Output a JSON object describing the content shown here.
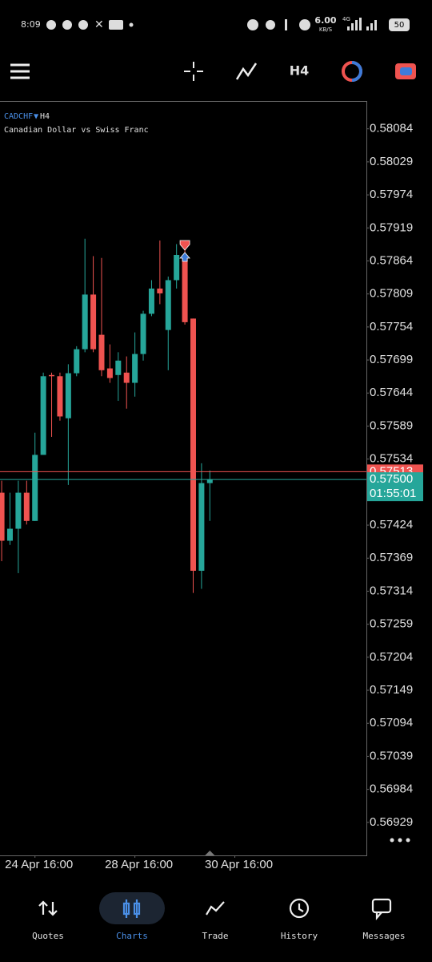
{
  "status_bar": {
    "time": "8:09",
    "speed": "6.00",
    "speed_unit": "KB/S",
    "network": "4G",
    "battery": "50"
  },
  "toolbar": {
    "timeframe": "H4"
  },
  "chart_data": {
    "type": "candlestick",
    "symbol": "CADCHF",
    "timeframe": "H4",
    "title": "Canadian Dollar vs Swiss Franc",
    "open": [
      0.57478,
      0.57398,
      0.57418,
      0.57478,
      0.57431,
      0.57541,
      0.57674,
      0.57672,
      0.57602,
      0.57677,
      0.57717,
      0.57808,
      0.57741,
      0.57685,
      0.57674,
      0.57678,
      0.57661,
      0.57709,
      0.57776,
      0.57818,
      0.57749,
      0.57832,
      0.57874,
      0.57768,
      0.57348,
      0.57494
    ],
    "high": [
      0.57498,
      0.57478,
      0.57498,
      0.57498,
      0.57578,
      0.57678,
      0.57678,
      0.57678,
      0.57692,
      0.57722,
      0.57901,
      0.57872,
      0.57869,
      0.57725,
      0.57712,
      0.57705,
      0.57745,
      0.57781,
      0.57832,
      0.57898,
      0.57838,
      0.57892,
      0.57898,
      0.57768,
      0.57527,
      0.57515
    ],
    "low": [
      0.57364,
      0.57391,
      0.57344,
      0.57425,
      0.57431,
      0.57545,
      0.57571,
      0.57598,
      0.57491,
      0.57672,
      0.57712,
      0.57712,
      0.57672,
      0.57661,
      0.57631,
      0.57618,
      0.57638,
      0.57698,
      0.57772,
      0.57792,
      0.57682,
      0.57818,
      0.57758,
      0.57311,
      0.57318,
      0.57431
    ],
    "close": [
      0.57398,
      0.57418,
      0.57478,
      0.57431,
      0.57541,
      0.57672,
      0.57672,
      0.57605,
      0.57677,
      0.57717,
      0.57808,
      0.57717,
      0.57682,
      0.57669,
      0.57698,
      0.57661,
      0.57709,
      0.57776,
      0.57818,
      0.5781,
      0.57832,
      0.57874,
      0.57762,
      0.57348,
      0.57494,
      0.575
    ],
    "colors": {
      "up": "#26a69a",
      "down": "#ef5350"
    },
    "ylim": [
      0.56874,
      0.58129
    ],
    "yticks": [
      0.58084,
      0.58029,
      0.57974,
      0.57919,
      0.57864,
      0.57809,
      0.57754,
      0.57699,
      0.57644,
      0.57589,
      0.57534,
      0.57424,
      0.57369,
      0.57314,
      0.57259,
      0.57204,
      0.57149,
      0.57094,
      0.57039,
      0.56984,
      0.56929
    ],
    "xlim": [
      -0.2,
      43.8
    ],
    "xticks": [
      {
        "value": 4,
        "label": "24 Apr 16:00"
      },
      {
        "value": 16,
        "label": "28 Apr 16:00"
      },
      {
        "value": 28,
        "label": "30 Apr 16:00"
      }
    ],
    "ask": {
      "value": 0.57513,
      "label": "0.57513"
    },
    "bid": {
      "value": 0.575,
      "label": "0.57500"
    },
    "countdown": "01:55:01"
  },
  "nav": {
    "items": [
      "Quotes",
      "Charts",
      "Trade",
      "History",
      "Messages"
    ]
  }
}
